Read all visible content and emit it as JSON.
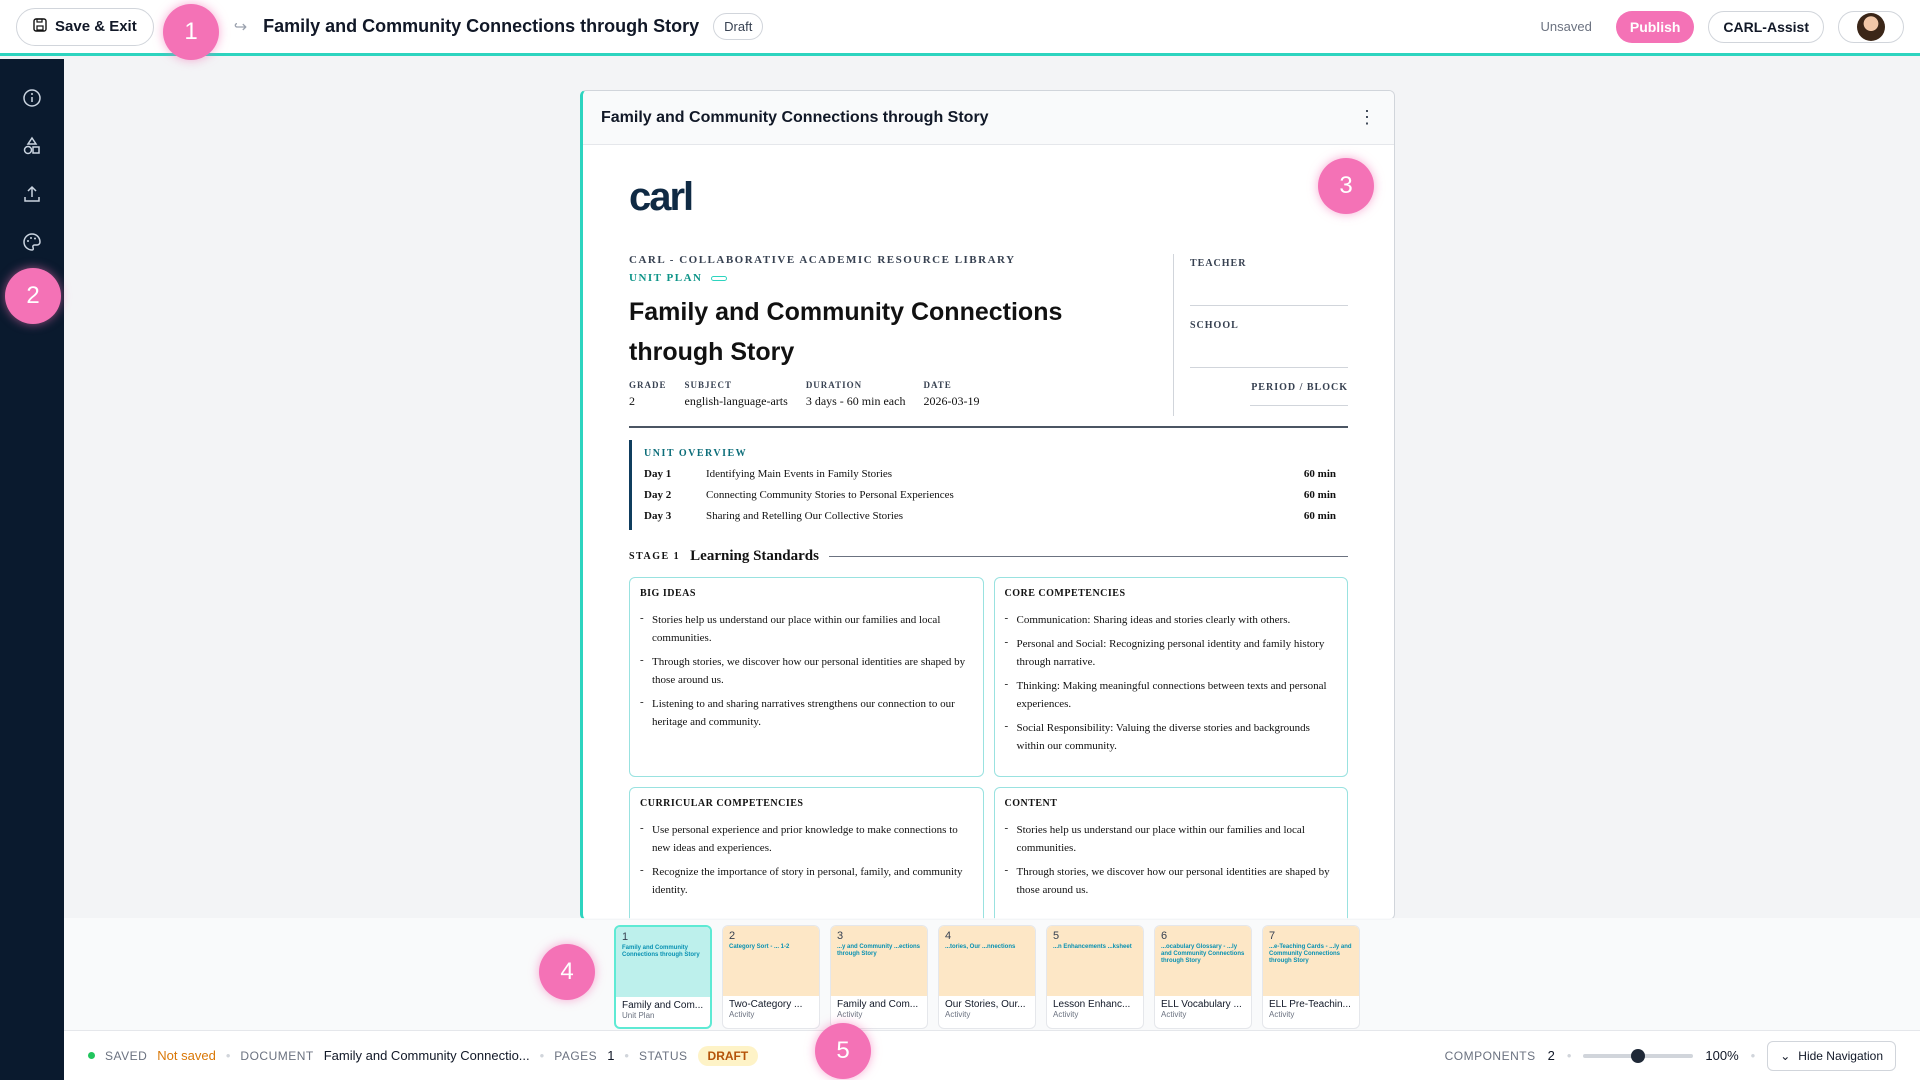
{
  "topbar": {
    "save_exit_label": "Save & Exit",
    "title": "Family and Community Connections through Story",
    "draft_label": "Draft",
    "unsaved_label": "Unsaved",
    "publish_label": "Publish",
    "carl_assist_label": "CARL-Assist"
  },
  "badges": [
    "1",
    "2",
    "3",
    "4",
    "5"
  ],
  "sidebar": {
    "icons": [
      "info-icon",
      "shapes-icon",
      "upload-icon",
      "palette-icon"
    ]
  },
  "doc": {
    "header_title": "Family and Community Connections through Story",
    "logo": "carl",
    "library": "CARL - COLLABORATIVE ACADEMIC RESOURCE LIBRARY",
    "unit_plan": "UNIT PLAN",
    "title": "Family and Community Connections through Story",
    "meta": [
      {
        "k": "GRADE",
        "v": "2"
      },
      {
        "k": "SUBJECT",
        "v": "english-language-arts"
      },
      {
        "k": "DURATION",
        "v": "3 days - 60 min each"
      },
      {
        "k": "DATE",
        "v": "2026-03-19"
      }
    ],
    "fields": {
      "teacher": "TEACHER",
      "school": "SCHOOL",
      "period": "PERIOD / BLOCK"
    },
    "overview_title": "UNIT OVERVIEW",
    "overview": [
      {
        "day": "Day 1",
        "topic": "Identifying Main Events in Family Stories",
        "min": "60 min"
      },
      {
        "day": "Day 2",
        "topic": "Connecting Community Stories to Personal Experiences",
        "min": "60 min"
      },
      {
        "day": "Day 3",
        "topic": "Sharing and Retelling Our Collective Stories",
        "min": "60 min"
      }
    ],
    "stage_label": "STAGE 1",
    "stage_name": "Learning Standards",
    "cards": [
      {
        "title": "BIG IDEAS",
        "items": [
          "Stories help us understand our place within our families and local communities.",
          "Through stories, we discover how our personal identities are shaped by those around us.",
          "Listening to and sharing narratives strengthens our connection to our heritage and community."
        ]
      },
      {
        "title": "CORE COMPETENCIES",
        "items": [
          "Communication: Sharing ideas and stories clearly with others.",
          "Personal and Social: Recognizing personal identity and family history through narrative.",
          "Thinking: Making meaningful connections between texts and personal experiences.",
          "Social Responsibility: Valuing the diverse stories and backgrounds within our community."
        ]
      },
      {
        "title": "CURRICULAR COMPETENCIES",
        "items": [
          "Use personal experience and prior knowledge to make connections to new ideas and experiences.",
          "Recognize the importance of story in personal, family, and community identity."
        ]
      },
      {
        "title": "CONTENT",
        "items": [
          "Stories help us understand our place within our families and local communities.",
          "Through stories, we discover how our personal identities are shaped by those around us."
        ]
      }
    ]
  },
  "thumbnails": [
    {
      "num": "1",
      "mini": "Family and Community Connections through Story",
      "label": "Family and Com...",
      "type": "Unit Plan"
    },
    {
      "num": "2",
      "mini": "Category Sort - ... 1-2",
      "label": "Two-Category ...",
      "type": "Activity"
    },
    {
      "num": "3",
      "mini": "...y and Community ...ections through Story",
      "label": "Family and Com...",
      "type": "Activity"
    },
    {
      "num": "4",
      "mini": "...tories, Our ...nnections",
      "label": "Our Stories, Our...",
      "type": "Activity"
    },
    {
      "num": "5",
      "mini": "...n Enhancements ...ksheet",
      "label": "Lesson Enhanc...",
      "type": "Activity"
    },
    {
      "num": "6",
      "mini": "...ocabulary Glossary - ...ly and Community Connections through Story",
      "label": "ELL Vocabulary ...",
      "type": "Activity"
    },
    {
      "num": "7",
      "mini": "...e-Teaching Cards - ...ly and Community Connections through Story",
      "label": "ELL Pre-Teachin...",
      "type": "Activity"
    }
  ],
  "statusbar": {
    "saved_key": "SAVED",
    "saved_val": "Not saved",
    "document_key": "DOCUMENT",
    "document_val": "Family and Community Connectio...",
    "pages_key": "PAGES",
    "pages_val": "1",
    "status_key": "STATUS",
    "status_val": "DRAFT",
    "components_key": "COMPONENTS",
    "components_val": "2",
    "zoom": "100%",
    "zoom_fraction": 0.5,
    "hide_nav_label": "Hide Navigation"
  },
  "colors": {
    "accent": "#2dd4bf",
    "publish": "#f472b6",
    "sidebar": "#0a1a2e",
    "badge": "#f472b6"
  }
}
